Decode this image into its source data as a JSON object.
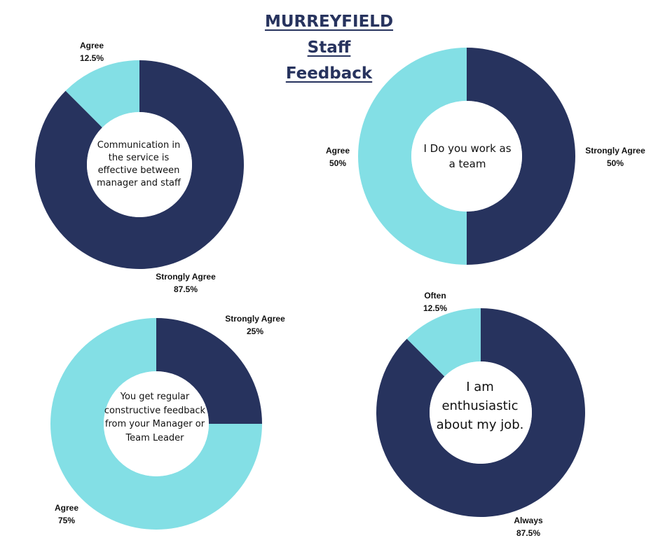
{
  "title": {
    "line1": "MURREYFIELD",
    "line2": "Staff",
    "line3": "Feedback"
  },
  "colors": {
    "dark": "#27335e",
    "light": "#83dfe5",
    "background": "#ffffff"
  },
  "chart_data": [
    {
      "type": "pie",
      "title": "Communication in the service is effective between manager and staff",
      "series": [
        {
          "name": "Strongly Agree",
          "value": 87.5,
          "label": "87.5%",
          "color": "#27335e"
        },
        {
          "name": "Agree",
          "value": 12.5,
          "label": "12.5%",
          "color": "#83dfe5"
        }
      ]
    },
    {
      "type": "pie",
      "title": "I Do you work as a team",
      "series": [
        {
          "name": "Strongly Agree",
          "value": 50,
          "label": "50%",
          "color": "#27335e"
        },
        {
          "name": "Agree",
          "value": 50,
          "label": "50%",
          "color": "#83dfe5"
        }
      ]
    },
    {
      "type": "pie",
      "title": "You get regular constructive feedback from your Manager or Team Leader",
      "series": [
        {
          "name": "Strongly Agree",
          "value": 25,
          "label": "25%",
          "color": "#27335e"
        },
        {
          "name": "Agree",
          "value": 75,
          "label": "75%",
          "color": "#83dfe5"
        }
      ]
    },
    {
      "type": "pie",
      "title": "I am enthusiastic about my job.",
      "series": [
        {
          "name": "Always",
          "value": 87.5,
          "label": "87.5%",
          "color": "#27335e"
        },
        {
          "name": "Often",
          "value": 12.5,
          "label": "12.5%",
          "color": "#83dfe5"
        }
      ]
    }
  ]
}
